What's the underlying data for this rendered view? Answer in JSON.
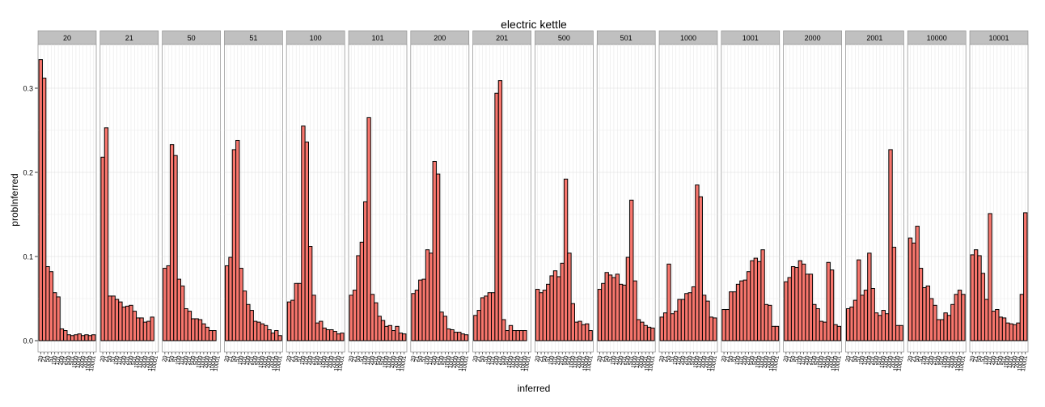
{
  "chart_data": {
    "type": "bar",
    "title": "electric kettle",
    "xlabel": "inferred",
    "ylabel": "probInferred",
    "ylim": [
      0,
      0.35
    ],
    "y_ticks": [
      "0.0",
      "0.1",
      "0.2",
      "0.3"
    ],
    "y_tick_values": [
      0,
      0.1,
      0.2,
      0.3
    ],
    "categories": [
      "20",
      "21",
      "50",
      "51",
      "100",
      "101",
      "200",
      "201",
      "500",
      "501",
      "1000",
      "1001",
      "2000",
      "2001",
      "10000",
      "10001"
    ],
    "fill_color": "#F8766D",
    "stroke_color": "#000000",
    "strip_color": "#C0C0C0",
    "grid": true,
    "panels": [
      {
        "label": "20",
        "values": [
          0.334,
          0.312,
          0.088,
          0.082,
          0.057,
          0.052,
          0.014,
          0.012,
          0.007,
          0.006,
          0.007,
          0.008,
          0.006,
          0.007,
          0.006,
          0.007
        ]
      },
      {
        "label": "21",
        "values": [
          0.218,
          0.253,
          0.053,
          0.053,
          0.049,
          0.046,
          0.04,
          0.041,
          0.042,
          0.035,
          0.027,
          0.027,
          0.022,
          0.023,
          0.028,
          0.0
        ]
      },
      {
        "label": "50",
        "values": [
          0.086,
          0.089,
          0.233,
          0.22,
          0.073,
          0.065,
          0.038,
          0.035,
          0.026,
          0.026,
          0.025,
          0.02,
          0.016,
          0.012,
          0.012,
          0.0
        ]
      },
      {
        "label": "51",
        "values": [
          0.089,
          0.099,
          0.227,
          0.238,
          0.086,
          0.059,
          0.043,
          0.036,
          0.023,
          0.022,
          0.02,
          0.018,
          0.013,
          0.009,
          0.012,
          0.006
        ]
      },
      {
        "label": "100",
        "values": [
          0.046,
          0.048,
          0.068,
          0.068,
          0.255,
          0.236,
          0.112,
          0.054,
          0.021,
          0.023,
          0.015,
          0.013,
          0.013,
          0.011,
          0.008,
          0.009
        ]
      },
      {
        "label": "101",
        "values": [
          0.054,
          0.06,
          0.101,
          0.117,
          0.165,
          0.265,
          0.055,
          0.045,
          0.029,
          0.024,
          0.017,
          0.018,
          0.012,
          0.017,
          0.009,
          0.008
        ]
      },
      {
        "label": "200",
        "values": [
          0.056,
          0.06,
          0.072,
          0.073,
          0.108,
          0.104,
          0.213,
          0.198,
          0.034,
          0.029,
          0.014,
          0.013,
          0.01,
          0.01,
          0.008,
          0.007
        ]
      },
      {
        "label": "201",
        "values": [
          0.03,
          0.036,
          0.051,
          0.053,
          0.057,
          0.057,
          0.294,
          0.309,
          0.025,
          0.012,
          0.018,
          0.012,
          0.012,
          0.012,
          0.012,
          0.0
        ]
      },
      {
        "label": "500",
        "values": [
          0.061,
          0.057,
          0.06,
          0.067,
          0.077,
          0.083,
          0.076,
          0.092,
          0.192,
          0.104,
          0.044,
          0.022,
          0.023,
          0.019,
          0.02,
          0.012
        ]
      },
      {
        "label": "501",
        "values": [
          0.061,
          0.068,
          0.081,
          0.078,
          0.075,
          0.079,
          0.067,
          0.066,
          0.099,
          0.167,
          0.071,
          0.025,
          0.022,
          0.018,
          0.016,
          0.015
        ]
      },
      {
        "label": "1000",
        "values": [
          0.028,
          0.033,
          0.091,
          0.032,
          0.035,
          0.049,
          0.049,
          0.056,
          0.057,
          0.064,
          0.185,
          0.171,
          0.054,
          0.047,
          0.028,
          0.027
        ]
      },
      {
        "label": "1001",
        "values": [
          0.037,
          0.037,
          0.058,
          0.058,
          0.067,
          0.071,
          0.072,
          0.082,
          0.095,
          0.098,
          0.094,
          0.108,
          0.043,
          0.042,
          0.017,
          0.017
        ]
      },
      {
        "label": "2000",
        "values": [
          0.07,
          0.075,
          0.088,
          0.087,
          0.095,
          0.091,
          0.079,
          0.079,
          0.043,
          0.038,
          0.023,
          0.022,
          0.093,
          0.084,
          0.019,
          0.017
        ]
      },
      {
        "label": "2001",
        "values": [
          0.038,
          0.04,
          0.048,
          0.096,
          0.054,
          0.06,
          0.104,
          0.062,
          0.033,
          0.03,
          0.036,
          0.032,
          0.227,
          0.111,
          0.018,
          0.018
        ]
      },
      {
        "label": "10000",
        "values": [
          0.122,
          0.116,
          0.136,
          0.086,
          0.063,
          0.065,
          0.05,
          0.042,
          0.025,
          0.025,
          0.033,
          0.03,
          0.043,
          0.055,
          0.06,
          0.055
        ]
      },
      {
        "label": "10001",
        "values": [
          0.102,
          0.108,
          0.101,
          0.08,
          0.049,
          0.151,
          0.035,
          0.037,
          0.028,
          0.027,
          0.021,
          0.02,
          0.019,
          0.021,
          0.055,
          0.152
        ]
      }
    ]
  }
}
